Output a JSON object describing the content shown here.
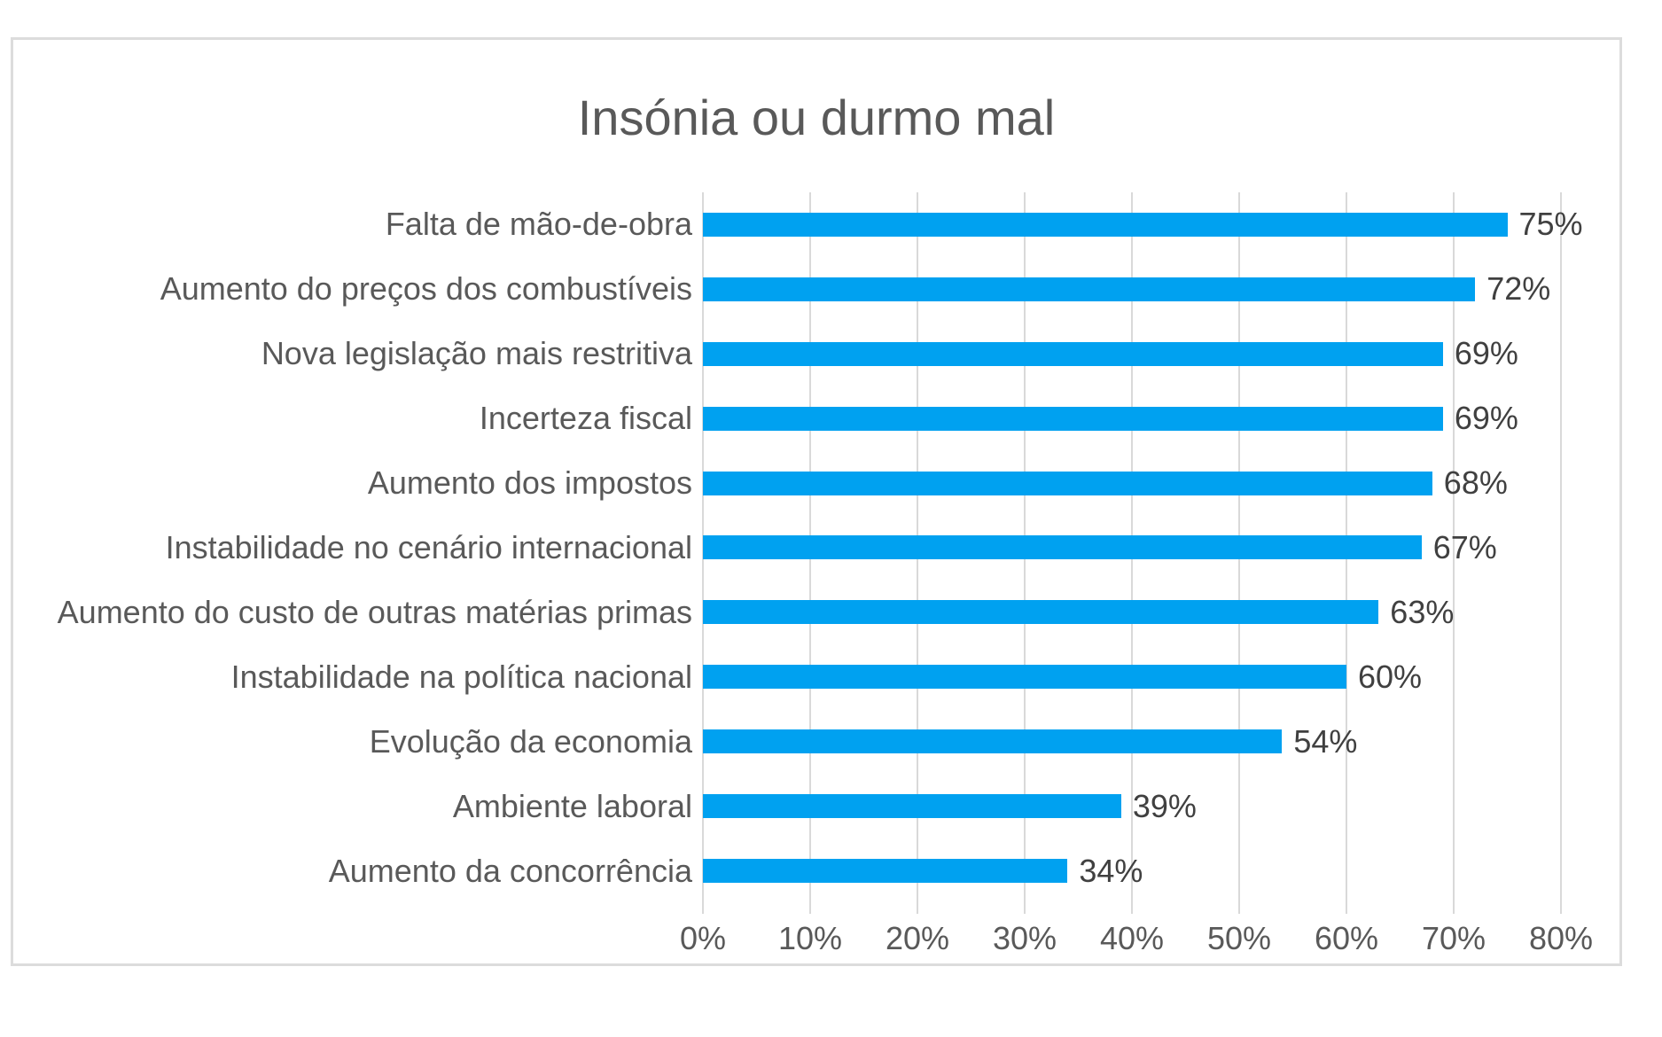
{
  "chart_data": {
    "type": "bar",
    "orientation": "horizontal",
    "title": "Insónia ou durmo mal",
    "categories": [
      "Falta de mão-de-obra",
      "Aumento do preços dos combustíveis",
      "Nova legislação mais restritiva",
      "Incerteza fiscal",
      "Aumento dos impostos",
      "Instabilidade no cenário internacional",
      "Aumento do custo de outras matérias primas",
      "Instabilidade na política nacional",
      "Evolução da economia",
      "Ambiente laboral",
      "Aumento da concorrência"
    ],
    "values": [
      75,
      72,
      69,
      69,
      68,
      67,
      63,
      60,
      54,
      39,
      34
    ],
    "value_suffix": "%",
    "data_labels": true,
    "xlabel": "",
    "ylabel": "",
    "xlim": [
      0,
      80
    ],
    "xticks": [
      "0%",
      "10%",
      "20%",
      "30%",
      "40%",
      "50%",
      "60%",
      "70%",
      "80%"
    ],
    "grid": "vertical",
    "legend": "none"
  },
  "colors": {
    "bar": "#00A1F0",
    "title_text": "#595959",
    "category_text": "#595959",
    "axis_text": "#595959",
    "value_text": "#404040",
    "gridline": "#D9D9D9",
    "frame_border": "#DCDCDC"
  }
}
